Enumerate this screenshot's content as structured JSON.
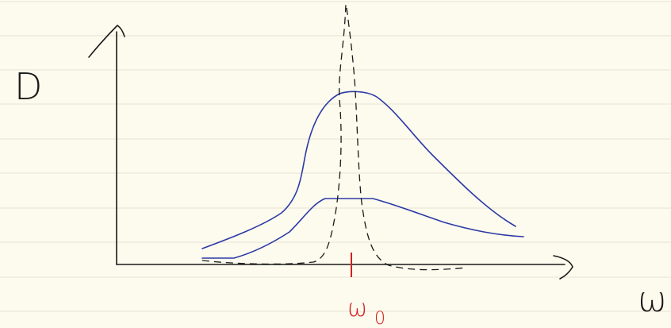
{
  "y_axis_label": "D",
  "x_axis_label": "ω",
  "marker_label": {
    "symbol": "ω",
    "subscript": "0"
  }
}
